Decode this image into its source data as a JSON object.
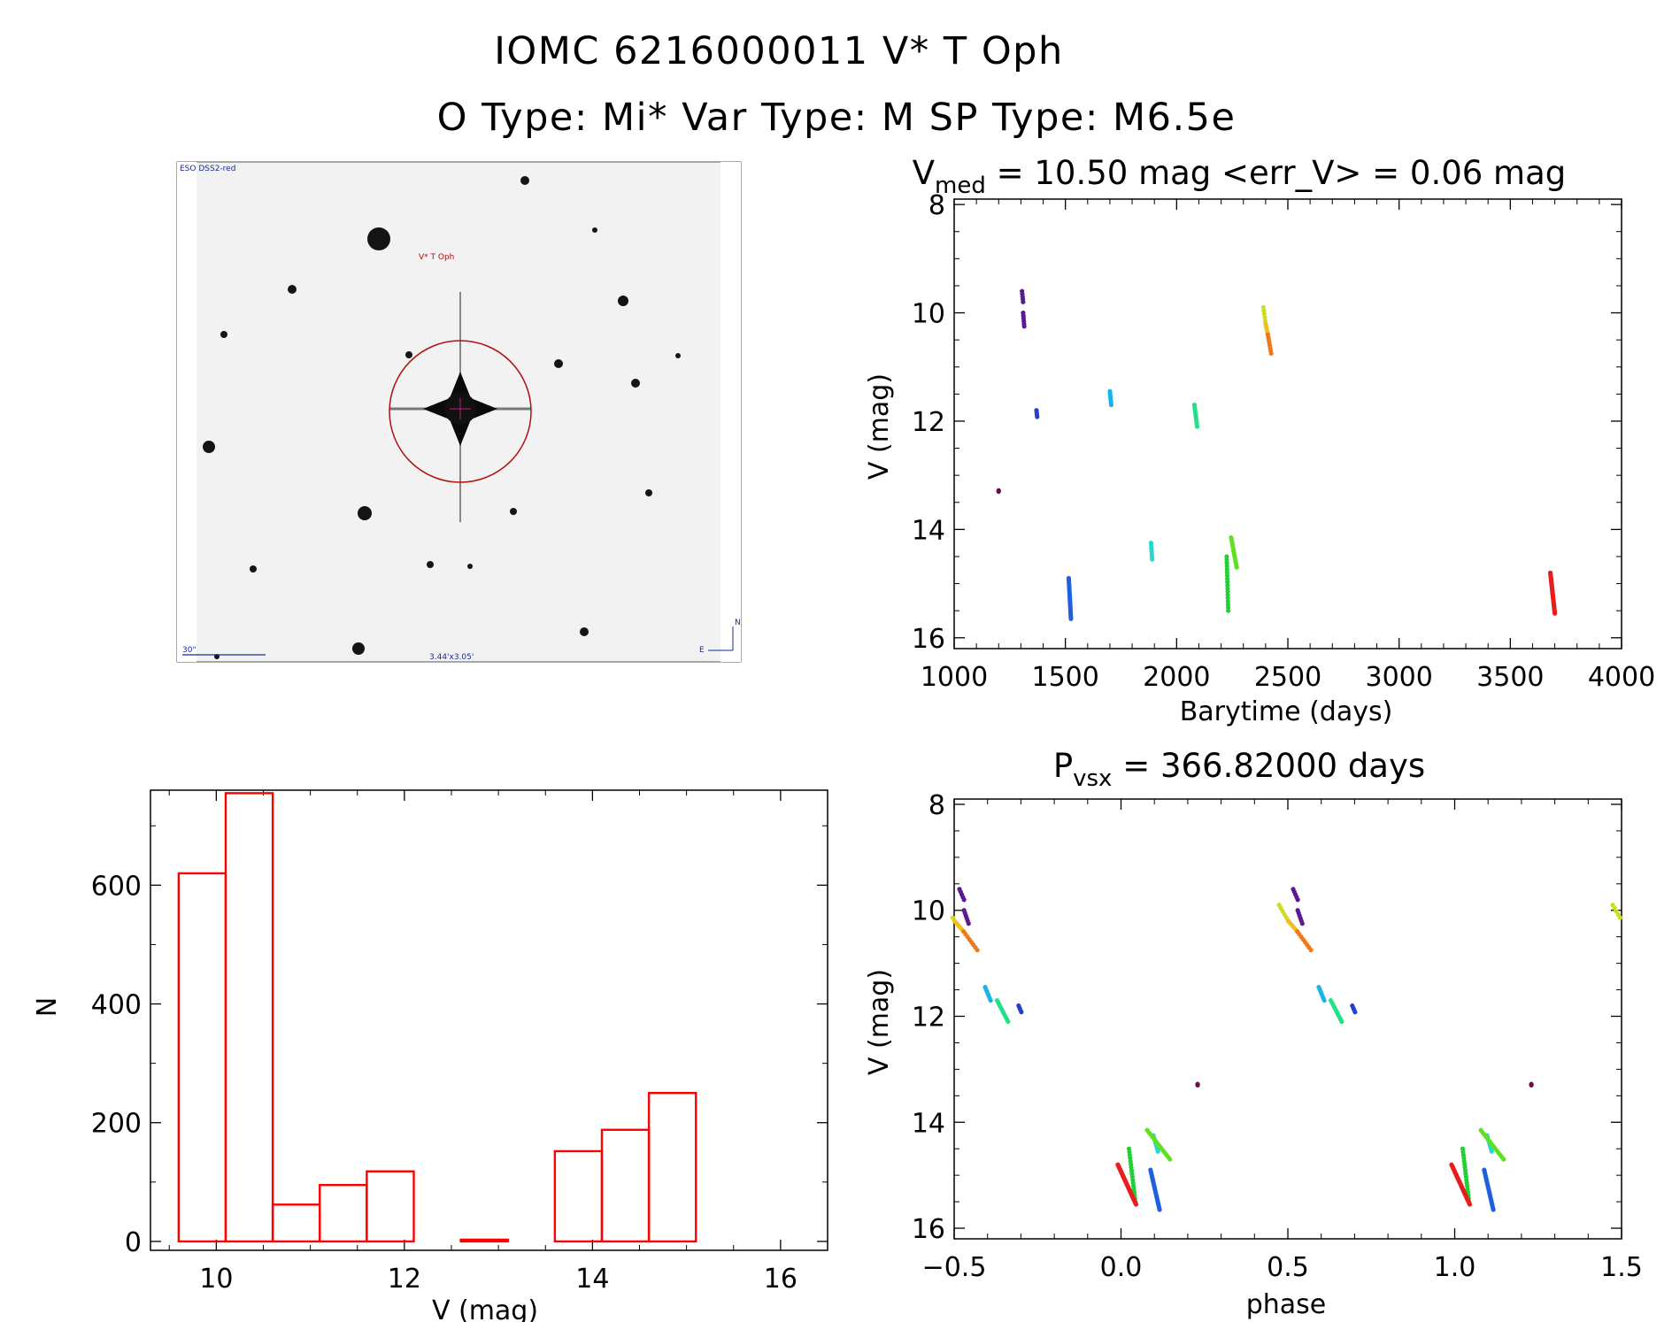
{
  "header": {
    "line1": "IOMC 6216000011    V* T Oph",
    "line2": "O Type: Mi*  Var Type: M  SP Type: M6.5e"
  },
  "image_panel": {
    "corner_label": "ESO DSS2-red",
    "target_label": "V* T Oph",
    "scale_label": "30\"",
    "fov_label": "3.44'x3.05'",
    "compass_n": "N",
    "compass_e": "E"
  },
  "chart_data": [
    {
      "id": "lightcurve",
      "type": "scatter",
      "title_main": "V",
      "title_sub": "med",
      "title_rest": " = 10.50 mag <err_V> = 0.06 mag",
      "xlabel": "Barytime (days)",
      "ylabel": "V (mag)",
      "xlim": [
        1000,
        4000
      ],
      "ylim": [
        16.2,
        7.9
      ],
      "xticks": [
        1000,
        1500,
        2000,
        2500,
        3000,
        3500,
        4000
      ],
      "yticks": [
        8,
        10,
        12,
        14,
        16
      ],
      "groups": [
        {
          "x0": 1200,
          "x1": 1200,
          "y0": 13.28,
          "y1": 13.3,
          "n": 2,
          "color": "#6b0f4a"
        },
        {
          "x0": 1305,
          "x1": 1310,
          "y0": 9.6,
          "y1": 9.8,
          "n": 5,
          "color": "#5a1a90"
        },
        {
          "x0": 1310,
          "x1": 1315,
          "y0": 10.0,
          "y1": 10.25,
          "n": 6,
          "color": "#5a1a90"
        },
        {
          "x0": 1370,
          "x1": 1373,
          "y0": 11.8,
          "y1": 11.92,
          "n": 4,
          "color": "#2440c8"
        },
        {
          "x0": 1515,
          "x1": 1525,
          "y0": 14.9,
          "y1": 15.65,
          "n": 22,
          "color": "#1f5fe0"
        },
        {
          "x0": 1700,
          "x1": 1706,
          "y0": 11.45,
          "y1": 11.7,
          "n": 7,
          "color": "#1ab3e6"
        },
        {
          "x0": 1885,
          "x1": 1890,
          "y0": 14.25,
          "y1": 14.55,
          "n": 7,
          "color": "#22d8d0"
        },
        {
          "x0": 2080,
          "x1": 2092,
          "y0": 11.7,
          "y1": 12.1,
          "n": 10,
          "color": "#22e08a"
        },
        {
          "x0": 2225,
          "x1": 2232,
          "y0": 14.5,
          "y1": 15.5,
          "n": 18,
          "color": "#22d035"
        },
        {
          "x0": 2245,
          "x1": 2270,
          "y0": 14.15,
          "y1": 14.7,
          "n": 14,
          "color": "#60e020"
        },
        {
          "x0": 2390,
          "x1": 2400,
          "y0": 9.9,
          "y1": 10.2,
          "n": 6,
          "color": "#c8e020"
        },
        {
          "x0": 2400,
          "x1": 2410,
          "y0": 10.2,
          "y1": 10.4,
          "n": 6,
          "color": "#f0c020"
        },
        {
          "x0": 2410,
          "x1": 2425,
          "y0": 10.4,
          "y1": 10.75,
          "n": 8,
          "color": "#f07818"
        },
        {
          "x0": 3680,
          "x1": 3700,
          "y0": 14.8,
          "y1": 15.55,
          "n": 40,
          "color": "#e61e1e"
        }
      ]
    },
    {
      "id": "histogram",
      "type": "bar",
      "xlabel": "V (mag)",
      "ylabel": "N",
      "xlim": [
        9.3,
        16.5
      ],
      "ylim": [
        -15,
        760
      ],
      "xticks": [
        10,
        12,
        14,
        16
      ],
      "yticks": [
        0,
        200,
        400,
        600
      ],
      "bin_edges": [
        9.6,
        10.1,
        10.6,
        11.1,
        11.6,
        12.1,
        12.6,
        13.1,
        13.6,
        14.1,
        14.6,
        15.1,
        15.6,
        16.1
      ],
      "values": [
        620,
        755,
        62,
        95,
        118,
        0,
        3,
        0,
        152,
        188,
        250,
        0,
        0
      ],
      "bar_color": "#ff0000"
    },
    {
      "id": "phased",
      "type": "scatter",
      "title_main": "P",
      "title_sub": "vsx",
      "title_rest": " = 366.82000 days",
      "xlabel": "phase",
      "ylabel": "V (mag)",
      "xlim": [
        -0.5,
        1.5
      ],
      "ylim": [
        16.2,
        7.9
      ],
      "xticks": [
        -0.5,
        0.0,
        0.5,
        1.0,
        1.5
      ],
      "xtick_labels": [
        "−0.5",
        "0.0",
        "0.5",
        "1.0",
        "1.5"
      ],
      "yticks": [
        8,
        10,
        12,
        14,
        16
      ],
      "period": 366.82,
      "epoch_ref": 3700,
      "phase_shift": 0.045,
      "repeat": [
        -1,
        0,
        1
      ]
    }
  ]
}
